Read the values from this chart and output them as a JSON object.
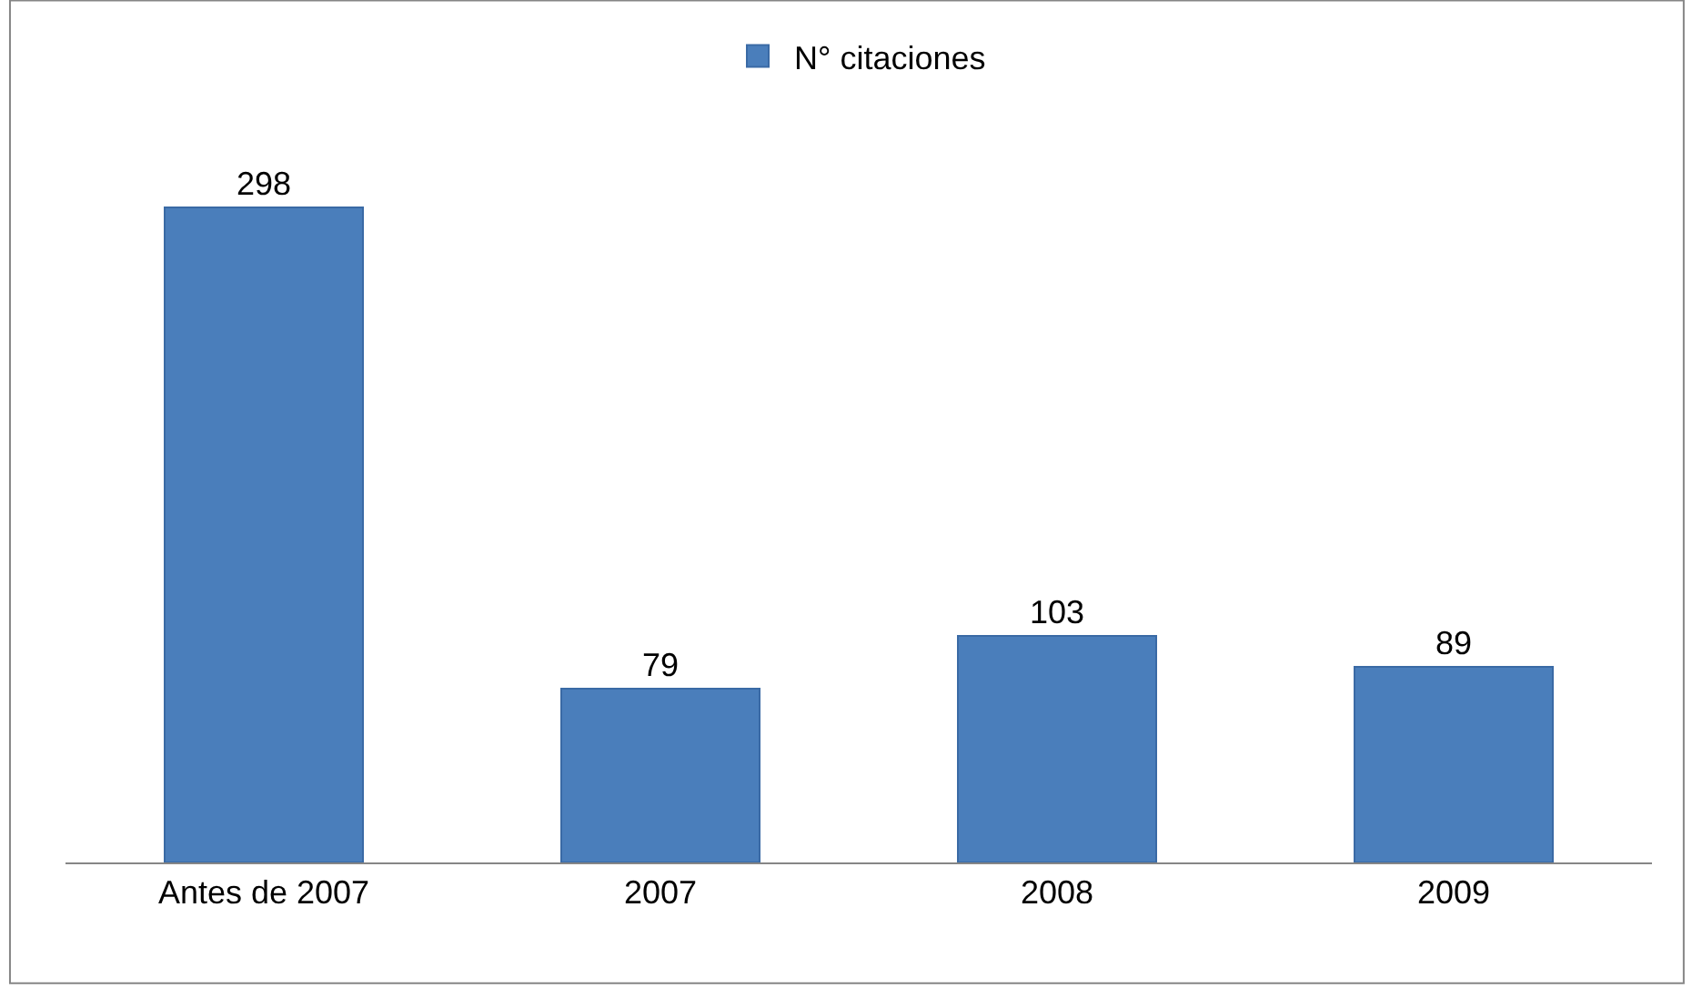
{
  "chart_data": {
    "type": "bar",
    "categories": [
      "Antes de 2007",
      "2007",
      "2008",
      "2009"
    ],
    "series": [
      {
        "name": "N° citaciones",
        "color": "#4a7ebb",
        "values": [
          298,
          79,
          103,
          89
        ]
      }
    ],
    "data_labels": true,
    "legend": "top"
  }
}
